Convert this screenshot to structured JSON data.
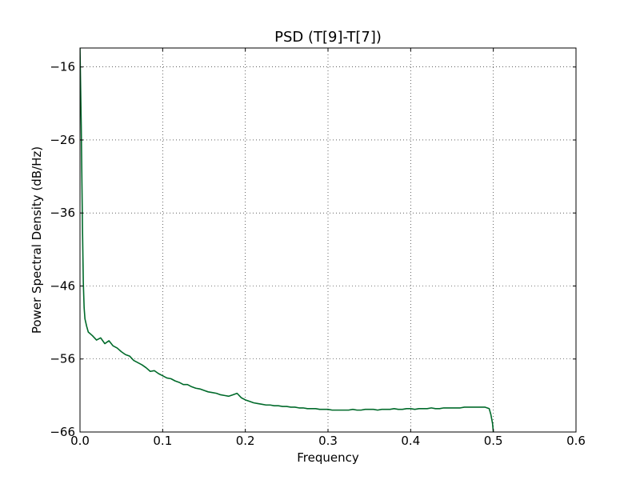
{
  "chart_data": {
    "type": "line",
    "title": "PSD (T[9]-T[7])",
    "xlabel": "Frequency",
    "ylabel": "Power Spectral Density (dB/Hz)",
    "xlim": [
      0.0,
      0.6
    ],
    "ylim": [
      -66,
      -13.4
    ],
    "xticks": [
      0.0,
      0.1,
      0.2,
      0.3,
      0.4,
      0.5,
      0.6
    ],
    "xtick_labels": [
      "0.0",
      "0.1",
      "0.2",
      "0.3",
      "0.4",
      "0.5",
      "0.6"
    ],
    "yticks": [
      -16,
      -26,
      -36,
      -46,
      -56,
      -66
    ],
    "ytick_labels": [
      "−16",
      "−26",
      "−36",
      "−46",
      "−56",
      "−66"
    ],
    "grid": true,
    "legend": "none",
    "series": [
      {
        "color": "#006a2a",
        "x": [
          0.0,
          0.0015,
          0.003,
          0.004,
          0.005,
          0.006,
          0.008,
          0.01,
          0.015,
          0.02,
          0.025,
          0.03,
          0.035,
          0.04,
          0.045,
          0.05,
          0.055,
          0.06,
          0.065,
          0.07,
          0.075,
          0.08,
          0.085,
          0.09,
          0.095,
          0.1,
          0.105,
          0.11,
          0.115,
          0.12,
          0.125,
          0.13,
          0.135,
          0.14,
          0.145,
          0.15,
          0.155,
          0.16,
          0.165,
          0.17,
          0.175,
          0.18,
          0.185,
          0.19,
          0.195,
          0.2,
          0.205,
          0.21,
          0.215,
          0.22,
          0.225,
          0.23,
          0.235,
          0.24,
          0.245,
          0.25,
          0.255,
          0.26,
          0.265,
          0.27,
          0.275,
          0.28,
          0.285,
          0.29,
          0.295,
          0.3,
          0.305,
          0.31,
          0.315,
          0.32,
          0.325,
          0.33,
          0.335,
          0.34,
          0.345,
          0.35,
          0.355,
          0.36,
          0.365,
          0.37,
          0.375,
          0.38,
          0.385,
          0.39,
          0.395,
          0.4,
          0.405,
          0.41,
          0.415,
          0.42,
          0.425,
          0.43,
          0.435,
          0.44,
          0.445,
          0.45,
          0.455,
          0.46,
          0.465,
          0.47,
          0.475,
          0.48,
          0.485,
          0.49,
          0.495,
          0.497,
          0.499,
          0.5
        ],
        "y": [
          -13.4,
          -24.0,
          -38.0,
          -45.5,
          -49.0,
          -50.5,
          -51.5,
          -52.3,
          -52.8,
          -53.4,
          -53.1,
          -53.9,
          -53.5,
          -54.2,
          -54.5,
          -55.0,
          -55.4,
          -55.6,
          -56.2,
          -56.5,
          -56.8,
          -57.2,
          -57.7,
          -57.6,
          -58.0,
          -58.3,
          -58.6,
          -58.7,
          -59.0,
          -59.2,
          -59.5,
          -59.5,
          -59.8,
          -60.0,
          -60.1,
          -60.3,
          -60.5,
          -60.6,
          -60.7,
          -60.9,
          -61.0,
          -61.1,
          -60.9,
          -60.7,
          -61.3,
          -61.6,
          -61.8,
          -62.0,
          -62.1,
          -62.2,
          -62.3,
          -62.3,
          -62.4,
          -62.4,
          -62.5,
          -62.5,
          -62.6,
          -62.6,
          -62.7,
          -62.7,
          -62.8,
          -62.8,
          -62.8,
          -62.9,
          -62.9,
          -62.9,
          -63.0,
          -63.0,
          -63.0,
          -63.0,
          -63.0,
          -62.9,
          -63.0,
          -63.0,
          -62.9,
          -62.9,
          -62.9,
          -63.0,
          -62.9,
          -62.9,
          -62.9,
          -62.8,
          -62.9,
          -62.9,
          -62.8,
          -62.8,
          -62.9,
          -62.8,
          -62.8,
          -62.8,
          -62.7,
          -62.8,
          -62.8,
          -62.7,
          -62.7,
          -62.7,
          -62.7,
          -62.7,
          -62.6,
          -62.6,
          -62.6,
          -62.6,
          -62.6,
          -62.6,
          -62.8,
          -63.6,
          -64.8,
          -66.0
        ]
      }
    ]
  }
}
